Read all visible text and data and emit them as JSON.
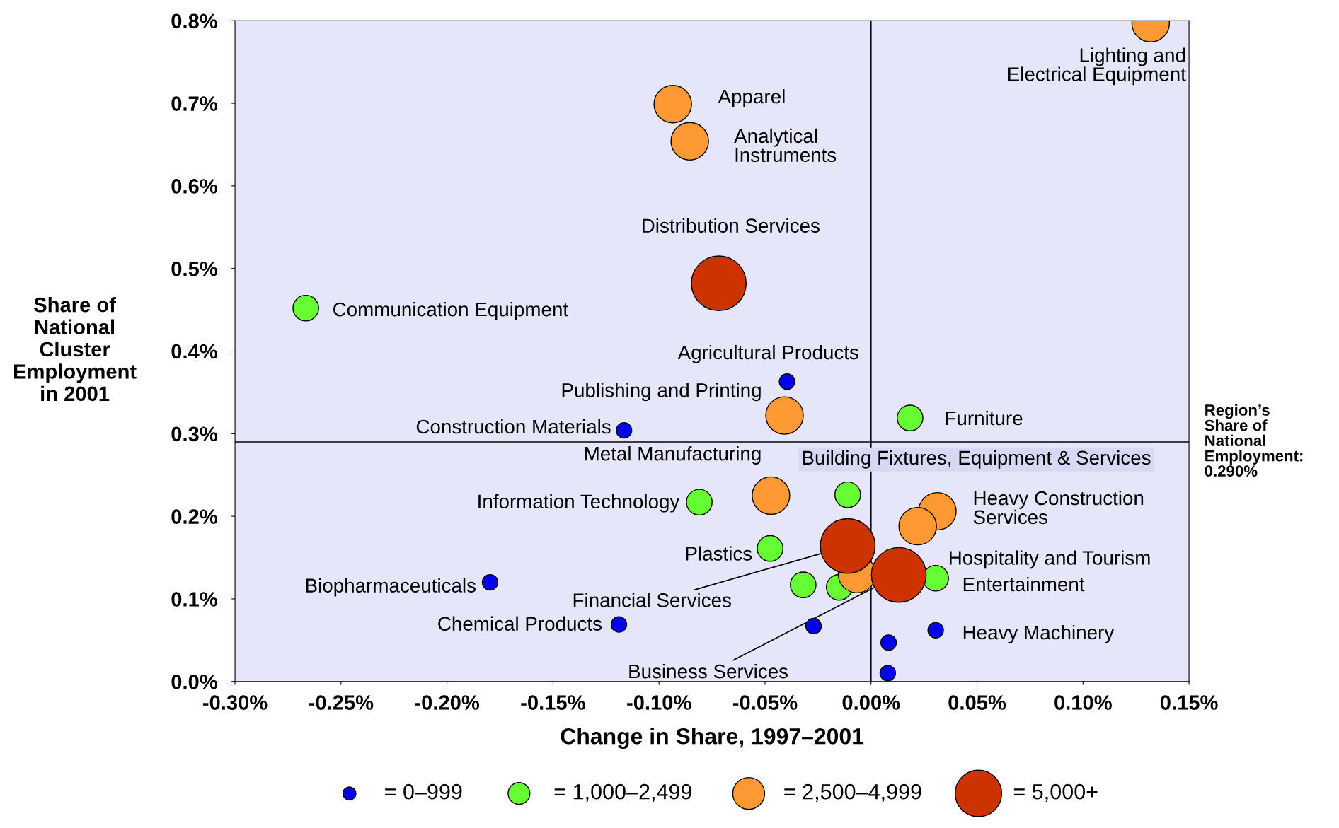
{
  "chart_data": {
    "type": "bubble",
    "xlabel": "Change in Share, 1997–2001",
    "ylabel": "Share of\nNational\nCluster\nEmployment\nin 2001",
    "xlim": [
      -0.3,
      0.15
    ],
    "ylim": [
      0,
      0.8
    ],
    "xticks": [
      {
        "value": -0.3,
        "label": "-0.30%"
      },
      {
        "value": -0.25,
        "label": "-0.25%"
      },
      {
        "value": -0.2,
        "label": "-0.20%"
      },
      {
        "value": -0.15,
        "label": "-0.15%"
      },
      {
        "value": -0.1,
        "label": "-0.10%"
      },
      {
        "value": -0.05,
        "label": "-0.05%"
      },
      {
        "value": 0,
        "label": "0.00%"
      },
      {
        "value": 0.05,
        "label": "0.05%"
      },
      {
        "value": 0.1,
        "label": "0.10%"
      },
      {
        "value": 0.15,
        "label": "0.15%"
      }
    ],
    "yticks": [
      {
        "value": 0,
        "label": "0.0%"
      },
      {
        "value": 0.1,
        "label": "0.1%"
      },
      {
        "value": 0.2,
        "label": "0.2%"
      },
      {
        "value": 0.3,
        "label": "0.3%"
      },
      {
        "value": 0.4,
        "label": "0.4%"
      },
      {
        "value": 0.5,
        "label": "0.5%"
      },
      {
        "value": 0.6,
        "label": "0.6%"
      },
      {
        "value": 0.7,
        "label": "0.7%"
      },
      {
        "value": 0.8,
        "label": "0.8%"
      }
    ],
    "grid": false,
    "legend": "bottom",
    "marker": "circle",
    "series": [
      {
        "name": "= 0–999",
        "color": "#0000ee",
        "x": [
          -0.0396,
          -0.1165,
          -0.1797,
          -0.1189,
          -0.0271,
          0.0083,
          0.0305,
          0.0079
        ],
        "values": [
          0.363,
          0.304,
          0.12,
          0.069,
          0.067,
          0.047,
          0.062,
          0.01
        ],
        "sizes": [
          0.08,
          0.08,
          0.08,
          0.08,
          0.08,
          0.08,
          0.08,
          0.08
        ]
      },
      {
        "name": "= 1,000–2,499",
        "color": "#66ff33",
        "x": [
          -0.2666,
          0.0184,
          -0.011,
          -0.081,
          -0.0476,
          0.0305,
          -0.032,
          -0.015
        ],
        "values": [
          0.452,
          0.319,
          0.226,
          0.217,
          0.161,
          0.125,
          0.117,
          0.114
        ],
        "sizes": [
          0.22,
          0.22,
          0.22,
          0.22,
          0.22,
          0.22,
          0.22,
          0.22
        ]
      },
      {
        "name": "= 2,500–4,999",
        "color": "#ff9933",
        "x": [
          0.1319,
          -0.0935,
          -0.0855,
          -0.0408,
          -0.0472,
          0.0313,
          0.022,
          -0.0066
        ],
        "values": [
          0.797,
          0.699,
          0.654,
          0.322,
          0.225,
          0.206,
          0.188,
          0.13
        ],
        "sizes": [
          0.47,
          0.47,
          0.47,
          0.47,
          0.47,
          0.47,
          0.47,
          0.47
        ]
      },
      {
        "name": "= 5,000+",
        "color": "#cc3300",
        "x": [
          -0.0718,
          -0.011,
          0.0131
        ],
        "values": [
          0.482,
          0.164,
          0.129
        ],
        "sizes": [
          1,
          1,
          1
        ]
      }
    ],
    "ref_lines": [
      {
        "axis": "x",
        "value": 0,
        "label": null,
        "color": "#000000"
      },
      {
        "axis": "y",
        "value": 0.29,
        "label": "Region’s\nShare of\nNational\nEmployment:\n0.290%",
        "color": "#000000"
      }
    ],
    "annotations": [
      {
        "text": "Lighting and\nElectrical Equipment",
        "x": 0.1319,
        "y": 0.797
      },
      {
        "text": "Apparel",
        "x": -0.0935,
        "y": 0.699
      },
      {
        "text": "Analytical\nInstruments",
        "x": -0.0855,
        "y": 0.654
      },
      {
        "text": "Distribution Services",
        "x": -0.0718,
        "y": 0.482
      },
      {
        "text": "Communication Equipment",
        "x": -0.2666,
        "y": 0.452
      },
      {
        "text": "Agricultural Products",
        "x": -0.0396,
        "y": 0.363
      },
      {
        "text": "Publishing and Printing",
        "x": -0.0408,
        "y": 0.322
      },
      {
        "text": "Construction Materials",
        "x": -0.1165,
        "y": 0.304
      },
      {
        "text": "Furniture",
        "x": 0.0184,
        "y": 0.319
      },
      {
        "text": "Metal Manufacturing",
        "x": -0.0472,
        "y": 0.225
      },
      {
        "text": "Building Fixtures, Equipment & Services",
        "x": -0.011,
        "y": 0.226
      },
      {
        "text": "Information Technology",
        "x": -0.081,
        "y": 0.217
      },
      {
        "text": "Heavy Construction\nServices",
        "x": 0.0313,
        "y": 0.206
      },
      {
        "text": "Hospitality and Tourism",
        "x": 0.022,
        "y": 0.188
      },
      {
        "text": "Plastics",
        "x": -0.0476,
        "y": 0.161
      },
      {
        "text": "Financial Services",
        "x": -0.011,
        "y": 0.164
      },
      {
        "text": "Entertainment",
        "x": 0.0305,
        "y": 0.125
      },
      {
        "text": "Biopharmaceuticals",
        "x": -0.1797,
        "y": 0.12
      },
      {
        "text": "Chemical Products",
        "x": -0.1189,
        "y": 0.069
      },
      {
        "text": "Heavy Machinery",
        "x": 0.0305,
        "y": 0.062
      },
      {
        "text": "Business Services",
        "x": 0.0131,
        "y": 0.129
      }
    ]
  }
}
